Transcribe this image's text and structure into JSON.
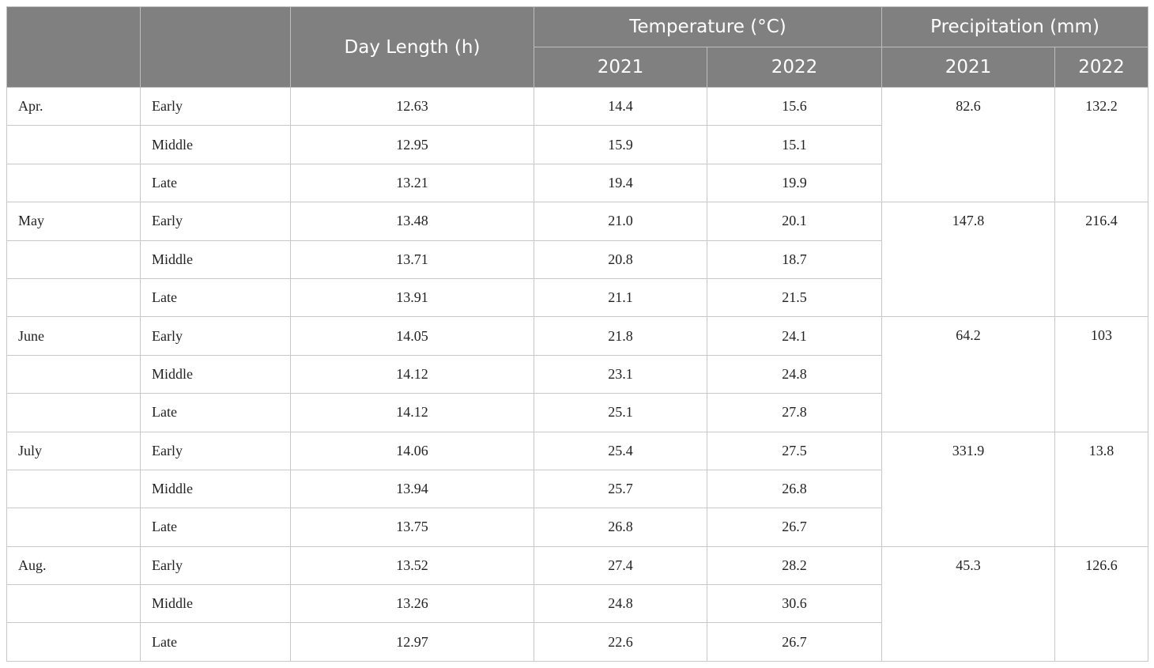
{
  "table": {
    "header": {
      "day_length": "Day Length (h)",
      "temperature": "Temperature (°C)",
      "precipitation": "Precipitation (mm)",
      "years": [
        "2021",
        "2022",
        "2021",
        "2022"
      ]
    },
    "months": [
      {
        "name": "Apr.",
        "precip": [
          "82.6",
          "132.2"
        ],
        "rows": [
          {
            "period": "Early",
            "day": "12.63",
            "temp": [
              "14.4",
              "15.6"
            ]
          },
          {
            "period": "Middle",
            "day": "12.95",
            "temp": [
              "15.9",
              "15.1"
            ]
          },
          {
            "period": "Late",
            "day": "13.21",
            "temp": [
              "19.4",
              "19.9"
            ]
          }
        ]
      },
      {
        "name": "May",
        "precip": [
          "147.8",
          "216.4"
        ],
        "rows": [
          {
            "period": "Early",
            "day": "13.48",
            "temp": [
              "21.0",
              "20.1"
            ]
          },
          {
            "period": "Middle",
            "day": "13.71",
            "temp": [
              "20.8",
              "18.7"
            ]
          },
          {
            "period": "Late",
            "day": "13.91",
            "temp": [
              "21.1",
              "21.5"
            ]
          }
        ]
      },
      {
        "name": "June",
        "precip": [
          "64.2",
          "103"
        ],
        "rows": [
          {
            "period": "Early",
            "day": "14.05",
            "temp": [
              "21.8",
              "24.1"
            ]
          },
          {
            "period": "Middle",
            "day": "14.12",
            "temp": [
              "23.1",
              "24.8"
            ]
          },
          {
            "period": "Late",
            "day": "14.12",
            "temp": [
              "25.1",
              "27.8"
            ]
          }
        ]
      },
      {
        "name": "July",
        "precip": [
          "331.9",
          "13.8"
        ],
        "rows": [
          {
            "period": "Early",
            "day": "14.06",
            "temp": [
              "25.4",
              "27.5"
            ]
          },
          {
            "period": "Middle",
            "day": "13.94",
            "temp": [
              "25.7",
              "26.8"
            ]
          },
          {
            "period": "Late",
            "day": "13.75",
            "temp": [
              "26.8",
              "26.7"
            ]
          }
        ]
      },
      {
        "name": "Aug.",
        "precip": [
          "45.3",
          "126.6"
        ],
        "rows": [
          {
            "period": "Early",
            "day": "13.52",
            "temp": [
              "27.4",
              "28.2"
            ]
          },
          {
            "period": "Middle",
            "day": "13.26",
            "temp": [
              "24.8",
              "30.6"
            ]
          },
          {
            "period": "Late",
            "day": "12.97",
            "temp": [
              "22.6",
              "26.7"
            ]
          }
        ]
      }
    ]
  }
}
